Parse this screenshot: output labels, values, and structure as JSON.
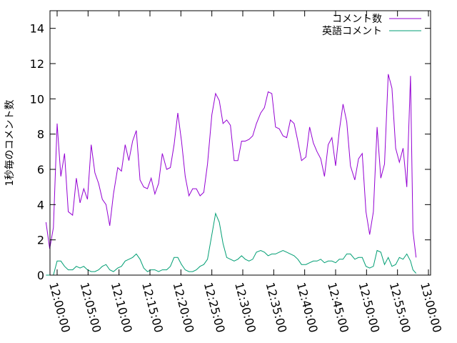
{
  "chart_data": {
    "type": "line",
    "title": "",
    "xlabel": "",
    "ylabel": "1秒毎のコメント数",
    "ylim": [
      0,
      15
    ],
    "xlim_minutes": [
      0,
      60
    ],
    "yticks": [
      0,
      2,
      4,
      6,
      8,
      10,
      12,
      14
    ],
    "xticks": [
      {
        "minute": 0,
        "label": "12:00:00"
      },
      {
        "minute": 5,
        "label": "12:05:00"
      },
      {
        "minute": 10,
        "label": "12:10:00"
      },
      {
        "minute": 15,
        "label": "12:15:00"
      },
      {
        "minute": 20,
        "label": "12:20:00"
      },
      {
        "minute": 25,
        "label": "12:25:00"
      },
      {
        "minute": 30,
        "label": "12:30:00"
      },
      {
        "minute": 35,
        "label": "12:35:00"
      },
      {
        "minute": 40,
        "label": "12:40:00"
      },
      {
        "minute": 45,
        "label": "12:45:00"
      },
      {
        "minute": 50,
        "label": "12:50:00"
      },
      {
        "minute": 55,
        "label": "12:55:00"
      },
      {
        "minute": 60,
        "label": "13:00:00"
      }
    ],
    "grid": false,
    "legend_position": "top-right",
    "series": [
      {
        "name": "コメント数",
        "color": "#9400d3",
        "points": [
          [
            -1.8,
            3.0
          ],
          [
            -1.2,
            1.5
          ],
          [
            -0.6,
            2.7
          ],
          [
            0.0,
            8.6
          ],
          [
            0.6,
            5.6
          ],
          [
            1.2,
            6.9
          ],
          [
            1.8,
            3.6
          ],
          [
            2.5,
            3.4
          ],
          [
            3.1,
            5.5
          ],
          [
            3.7,
            4.1
          ],
          [
            4.3,
            4.9
          ],
          [
            4.9,
            4.3
          ],
          [
            5.5,
            7.4
          ],
          [
            6.1,
            5.8
          ],
          [
            6.7,
            5.2
          ],
          [
            7.3,
            4.3
          ],
          [
            7.9,
            4.0
          ],
          [
            8.5,
            2.8
          ],
          [
            9.1,
            4.6
          ],
          [
            9.8,
            6.1
          ],
          [
            10.4,
            5.9
          ],
          [
            11.0,
            7.4
          ],
          [
            11.6,
            6.5
          ],
          [
            12.2,
            7.6
          ],
          [
            12.8,
            8.2
          ],
          [
            13.4,
            5.4
          ],
          [
            14.0,
            5.0
          ],
          [
            14.6,
            4.9
          ],
          [
            15.2,
            5.5
          ],
          [
            15.8,
            4.6
          ],
          [
            16.4,
            5.2
          ],
          [
            17.0,
            6.9
          ],
          [
            17.7,
            6.0
          ],
          [
            18.3,
            6.1
          ],
          [
            18.9,
            7.4
          ],
          [
            19.5,
            9.2
          ],
          [
            20.1,
            7.6
          ],
          [
            20.7,
            5.6
          ],
          [
            21.3,
            4.5
          ],
          [
            21.9,
            4.9
          ],
          [
            22.5,
            4.9
          ],
          [
            23.1,
            4.5
          ],
          [
            23.7,
            4.7
          ],
          [
            24.3,
            6.3
          ],
          [
            25.0,
            9.1
          ],
          [
            25.6,
            10.3
          ],
          [
            26.2,
            9.9
          ],
          [
            26.8,
            8.6
          ],
          [
            27.4,
            8.8
          ],
          [
            28.0,
            8.5
          ],
          [
            28.6,
            6.5
          ],
          [
            29.2,
            6.5
          ],
          [
            29.8,
            7.6
          ],
          [
            30.4,
            7.6
          ],
          [
            31.0,
            7.7
          ],
          [
            31.6,
            7.9
          ],
          [
            32.2,
            8.6
          ],
          [
            32.9,
            9.2
          ],
          [
            33.5,
            9.5
          ],
          [
            34.1,
            10.4
          ],
          [
            34.7,
            10.3
          ],
          [
            35.3,
            8.4
          ],
          [
            35.9,
            8.3
          ],
          [
            36.5,
            7.9
          ],
          [
            37.1,
            7.8
          ],
          [
            37.7,
            8.8
          ],
          [
            38.3,
            8.6
          ],
          [
            38.9,
            7.6
          ],
          [
            39.5,
            6.5
          ],
          [
            40.2,
            6.7
          ],
          [
            40.8,
            8.4
          ],
          [
            41.4,
            7.5
          ],
          [
            42.0,
            7.0
          ],
          [
            42.6,
            6.6
          ],
          [
            43.2,
            5.6
          ],
          [
            43.8,
            7.4
          ],
          [
            44.4,
            7.8
          ],
          [
            45.0,
            6.2
          ],
          [
            45.6,
            8.2
          ],
          [
            46.2,
            9.7
          ],
          [
            46.8,
            8.7
          ],
          [
            47.4,
            6.2
          ],
          [
            48.1,
            5.4
          ],
          [
            48.7,
            6.6
          ],
          [
            49.3,
            6.9
          ],
          [
            49.9,
            3.6
          ],
          [
            50.5,
            2.3
          ],
          [
            51.1,
            3.6
          ],
          [
            51.7,
            8.4
          ],
          [
            52.3,
            5.5
          ],
          [
            52.9,
            6.3
          ],
          [
            53.5,
            11.4
          ],
          [
            54.1,
            10.6
          ],
          [
            54.7,
            7.2
          ],
          [
            55.3,
            6.4
          ],
          [
            55.9,
            7.2
          ],
          [
            56.5,
            5.0
          ],
          [
            57.1,
            11.3
          ],
          [
            57.5,
            2.5
          ],
          [
            58.0,
            1.0
          ]
        ]
      },
      {
        "name": "英語コメント",
        "color": "#009e73",
        "points": [
          [
            -1.8,
            0.0
          ],
          [
            -1.2,
            0.0
          ],
          [
            -0.6,
            0.0
          ],
          [
            0.0,
            0.8
          ],
          [
            0.6,
            0.8
          ],
          [
            1.2,
            0.5
          ],
          [
            1.8,
            0.3
          ],
          [
            2.5,
            0.3
          ],
          [
            3.1,
            0.5
          ],
          [
            3.7,
            0.4
          ],
          [
            4.3,
            0.5
          ],
          [
            4.9,
            0.3
          ],
          [
            5.5,
            0.2
          ],
          [
            6.1,
            0.2
          ],
          [
            6.7,
            0.3
          ],
          [
            7.3,
            0.5
          ],
          [
            7.9,
            0.6
          ],
          [
            8.5,
            0.3
          ],
          [
            9.1,
            0.2
          ],
          [
            9.8,
            0.4
          ],
          [
            10.4,
            0.5
          ],
          [
            11.0,
            0.8
          ],
          [
            11.6,
            0.9
          ],
          [
            12.2,
            1.0
          ],
          [
            12.8,
            1.2
          ],
          [
            13.4,
            0.9
          ],
          [
            14.0,
            0.4
          ],
          [
            14.6,
            0.2
          ],
          [
            15.2,
            0.3
          ],
          [
            15.8,
            0.3
          ],
          [
            16.4,
            0.2
          ],
          [
            17.0,
            0.3
          ],
          [
            17.7,
            0.3
          ],
          [
            18.3,
            0.5
          ],
          [
            18.9,
            1.0
          ],
          [
            19.5,
            1.0
          ],
          [
            20.1,
            0.6
          ],
          [
            20.7,
            0.3
          ],
          [
            21.3,
            0.2
          ],
          [
            21.9,
            0.2
          ],
          [
            22.5,
            0.3
          ],
          [
            23.1,
            0.5
          ],
          [
            23.7,
            0.6
          ],
          [
            24.3,
            0.9
          ],
          [
            25.0,
            2.3
          ],
          [
            25.6,
            3.5
          ],
          [
            26.2,
            3.0
          ],
          [
            26.8,
            1.8
          ],
          [
            27.4,
            1.0
          ],
          [
            28.0,
            0.9
          ],
          [
            28.6,
            0.8
          ],
          [
            29.2,
            0.9
          ],
          [
            29.8,
            1.1
          ],
          [
            30.4,
            0.9
          ],
          [
            31.0,
            0.8
          ],
          [
            31.6,
            0.9
          ],
          [
            32.2,
            1.3
          ],
          [
            32.9,
            1.4
          ],
          [
            33.5,
            1.3
          ],
          [
            34.1,
            1.1
          ],
          [
            34.7,
            1.2
          ],
          [
            35.3,
            1.2
          ],
          [
            35.9,
            1.3
          ],
          [
            36.5,
            1.4
          ],
          [
            37.1,
            1.3
          ],
          [
            37.7,
            1.2
          ],
          [
            38.3,
            1.1
          ],
          [
            38.9,
            0.9
          ],
          [
            39.5,
            0.6
          ],
          [
            40.2,
            0.6
          ],
          [
            40.8,
            0.7
          ],
          [
            41.4,
            0.8
          ],
          [
            42.0,
            0.8
          ],
          [
            42.6,
            0.9
          ],
          [
            43.2,
            0.7
          ],
          [
            43.8,
            0.8
          ],
          [
            44.4,
            0.8
          ],
          [
            45.0,
            0.7
          ],
          [
            45.6,
            0.9
          ],
          [
            46.2,
            0.9
          ],
          [
            46.8,
            1.2
          ],
          [
            47.4,
            1.2
          ],
          [
            48.1,
            0.9
          ],
          [
            48.7,
            1.0
          ],
          [
            49.3,
            1.0
          ],
          [
            49.9,
            0.5
          ],
          [
            50.5,
            0.4
          ],
          [
            51.1,
            0.5
          ],
          [
            51.7,
            1.4
          ],
          [
            52.3,
            1.3
          ],
          [
            52.9,
            0.6
          ],
          [
            53.5,
            1.0
          ],
          [
            54.1,
            0.5
          ],
          [
            54.7,
            0.6
          ],
          [
            55.3,
            1.0
          ],
          [
            55.9,
            0.9
          ],
          [
            56.5,
            1.2
          ],
          [
            57.1,
            0.8
          ],
          [
            57.5,
            0.3
          ],
          [
            58.0,
            0.1
          ]
        ]
      }
    ]
  }
}
